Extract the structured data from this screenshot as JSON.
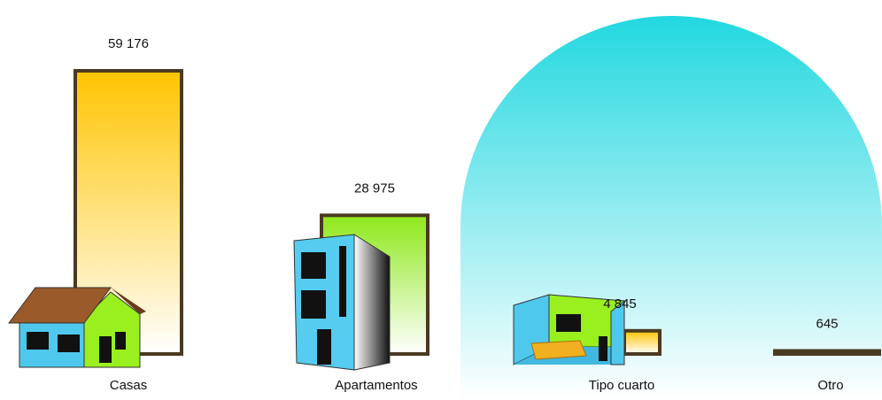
{
  "chart_data": {
    "type": "bar",
    "categories": [
      "Casas",
      "Apartamentos",
      "Tipo cuarto",
      "Otro"
    ],
    "values": [
      59176,
      28975,
      4845,
      645
    ],
    "value_labels": [
      "59 176",
      "28 975",
      "4 845",
      "645"
    ],
    "colors": [
      "#ffc400",
      "#8ee81a",
      "#ffc400",
      "#a8e838"
    ]
  }
}
